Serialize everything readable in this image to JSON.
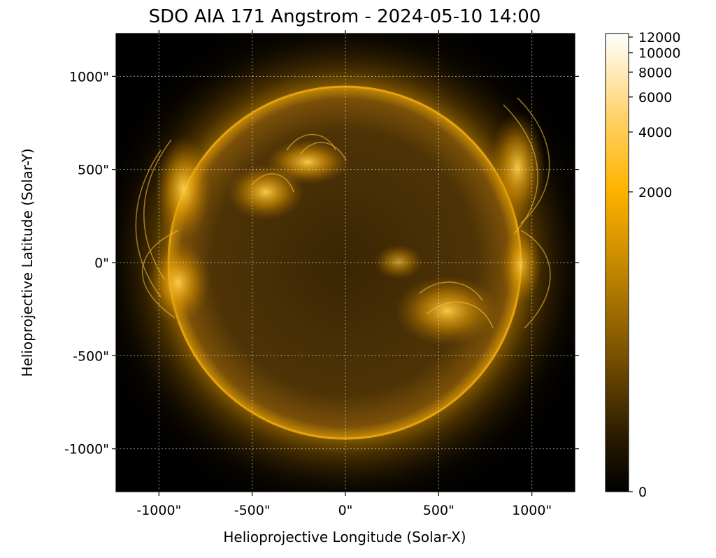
{
  "title": "SDO AIA 171 Angstrom - 2024-05-10 14:00",
  "xlabel": "Helioprojective Longitude (Solar-X)",
  "ylabel": "Helioprojective Latitude (Solar-Y)",
  "x_ticks": [
    "-1000\"",
    "-500\"",
    "0\"",
    "500\"",
    "1000\""
  ],
  "y_ticks": [
    "1000\"",
    "500\"",
    "0\"",
    "-500\"",
    "-1000\""
  ],
  "x_tick_values": [
    -1000,
    -500,
    0,
    500,
    1000
  ],
  "y_tick_values": [
    1000,
    500,
    0,
    -500,
    -1000
  ],
  "axis_range_arcsec": [
    -1230,
    1230
  ],
  "colorbar": {
    "ticks": [
      "12000",
      "10000",
      "8000",
      "6000",
      "4000",
      "2000",
      "0"
    ],
    "tick_values": [
      12000,
      10000,
      8000,
      6000,
      4000,
      2000,
      0
    ],
    "range": [
      0,
      12500
    ],
    "scale": "asinh"
  },
  "grid": "on",
  "colormap_colors": [
    "#000000",
    "#3a2500",
    "#8a5c00",
    "#d49000",
    "#ffb800",
    "#ffe29a",
    "#ffffff"
  ],
  "background_color": "#000000",
  "sun_color": "#5a3b08",
  "limb_color": "#f0a800"
}
